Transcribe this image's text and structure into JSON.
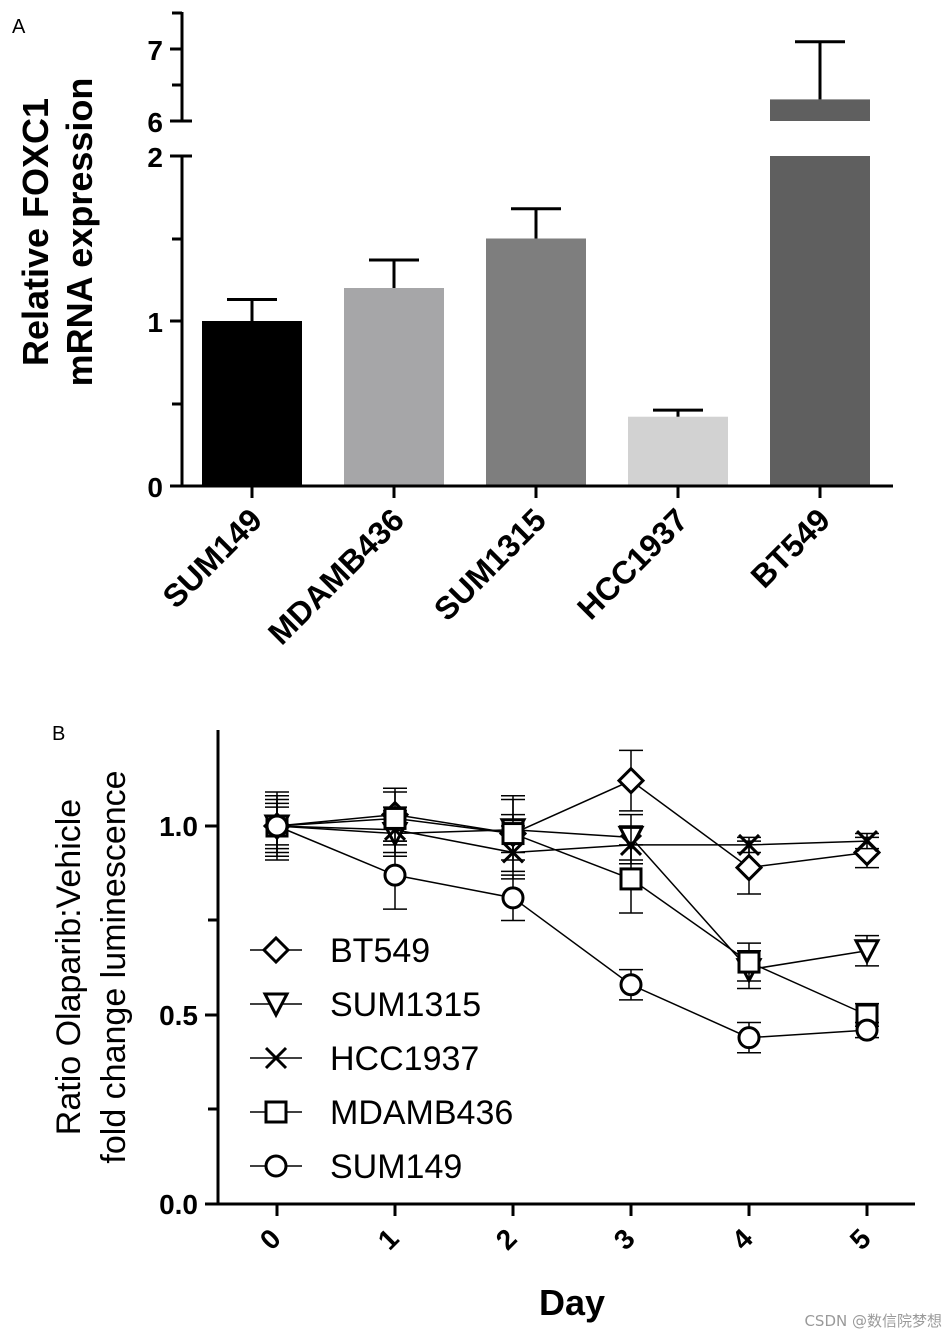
{
  "panel_a": {
    "letter": "A",
    "ylabel_line1": "Relative FOXC1",
    "ylabel_line2": "mRNA expression",
    "ytick_labels": [
      "0",
      "1",
      "2",
      "6",
      "7"
    ]
  },
  "panel_b": {
    "letter": "B",
    "ylabel_line1": "Ratio Olaparib:Vehicle",
    "ylabel_line2": "fold change luminescence",
    "xlabel": "Day",
    "ytick_labels": [
      "0.0",
      "0.5",
      "1.0"
    ],
    "xtick_labels": [
      "0",
      "1",
      "2",
      "3",
      "4",
      "5"
    ]
  },
  "watermark": "CSDN @数信院梦想",
  "chart_data": [
    {
      "type": "bar",
      "panel": "A",
      "title": "",
      "xlabel": "",
      "ylabel": "Relative FOXC1 mRNA expression",
      "categories": [
        "SUM149",
        "MDAMB436",
        "SUM1315",
        "HCC1937",
        "BT549"
      ],
      "values": [
        1.0,
        1.2,
        1.5,
        0.42,
        6.3
      ],
      "errors": [
        0.13,
        0.17,
        0.18,
        0.04,
        0.8
      ],
      "colors": [
        "#000000",
        "#a6a6a8",
        "#7e7e7e",
        "#d2d2d2",
        "#5f5f5f"
      ],
      "ylim": [
        0,
        7.4
      ],
      "y_axis_break": [
        2,
        6
      ],
      "yticks": [
        0,
        1,
        2,
        6,
        7
      ]
    },
    {
      "type": "line",
      "panel": "B",
      "title": "",
      "xlabel": "Day",
      "ylabel": "Ratio Olaparib:Vehicle fold change luminescence",
      "x": [
        0,
        1,
        2,
        3,
        4,
        5
      ],
      "xlim": [
        -0.5,
        5.4
      ],
      "ylim": [
        0,
        1.25
      ],
      "yticks": [
        0.0,
        0.5,
        1.0
      ],
      "legend_position": "lower-left",
      "series": [
        {
          "name": "BT549",
          "marker": "diamond",
          "values": [
            1.0,
            1.03,
            0.98,
            1.12,
            0.89,
            0.93
          ],
          "errors": [
            0.06,
            0.07,
            0.1,
            0.08,
            0.07,
            0.04
          ]
        },
        {
          "name": "SUM1315",
          "marker": "triangle-down",
          "values": [
            1.0,
            0.98,
            0.99,
            0.97,
            0.62,
            0.67
          ],
          "errors": [
            0.07,
            0.06,
            0.08,
            0.06,
            0.05,
            0.04
          ]
        },
        {
          "name": "HCC1937",
          "marker": "x",
          "values": [
            1.0,
            0.99,
            0.93,
            0.95,
            0.95,
            0.96
          ],
          "errors": [
            0.08,
            0.06,
            0.07,
            0.05,
            0.02,
            0.02
          ]
        },
        {
          "name": "MDAMB436",
          "marker": "square",
          "values": [
            1.0,
            1.02,
            0.98,
            0.86,
            0.64,
            0.5
          ],
          "errors": [
            0.09,
            0.07,
            0.05,
            0.09,
            0.05,
            0.03
          ]
        },
        {
          "name": "SUM149",
          "marker": "circle",
          "values": [
            1.0,
            0.87,
            0.81,
            0.58,
            0.44,
            0.46
          ],
          "errors": [
            0.05,
            0.09,
            0.06,
            0.04,
            0.04,
            0.02
          ]
        }
      ]
    }
  ]
}
